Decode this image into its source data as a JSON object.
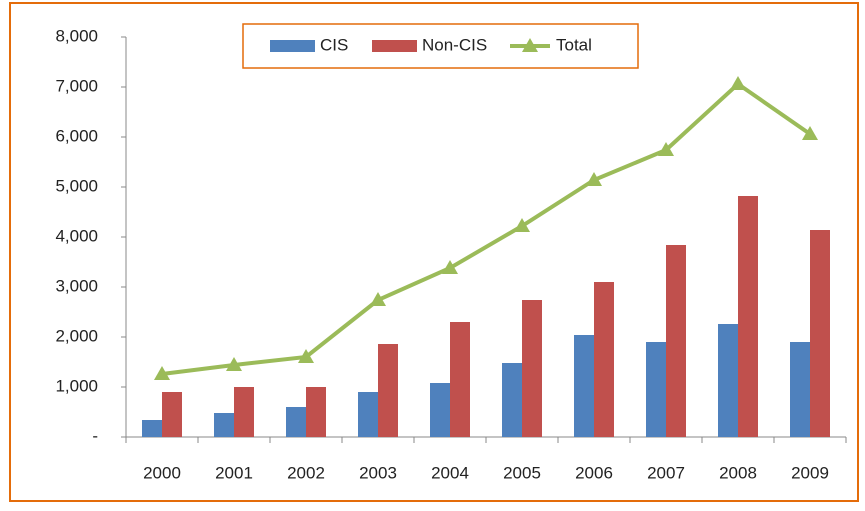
{
  "chart_data": {
    "type": "bar",
    "categories": [
      "2000",
      "2001",
      "2002",
      "2003",
      "2004",
      "2005",
      "2006",
      "2007",
      "2008",
      "2009"
    ],
    "series": [
      {
        "name": "CIS",
        "color": "#4f81bd",
        "type": "bar",
        "values": [
          340,
          480,
          600,
          900,
          1080,
          1480,
          2040,
          1900,
          2260,
          1900
        ]
      },
      {
        "name": "Non-CIS",
        "color": "#c0504d",
        "type": "bar",
        "values": [
          900,
          1000,
          1000,
          1860,
          2300,
          2740,
          3100,
          3840,
          4820,
          4140
        ]
      },
      {
        "name": "Total",
        "color": "#9bbb59",
        "type": "line",
        "values": [
          1260,
          1440,
          1600,
          2740,
          3380,
          4220,
          5140,
          5740,
          7060,
          6060
        ]
      }
    ],
    "ylim": [
      0,
      8000
    ],
    "yticks": [
      {
        "value": 0,
        "label": "-"
      },
      {
        "value": 1000,
        "label": "1,000"
      },
      {
        "value": 2000,
        "label": "2,000"
      },
      {
        "value": 3000,
        "label": "3,000"
      },
      {
        "value": 4000,
        "label": "4,000"
      },
      {
        "value": 5000,
        "label": "5,000"
      },
      {
        "value": 6000,
        "label": "6,000"
      },
      {
        "value": 7000,
        "label": "7,000"
      },
      {
        "value": 8000,
        "label": "8,000"
      }
    ],
    "legend": "top"
  }
}
